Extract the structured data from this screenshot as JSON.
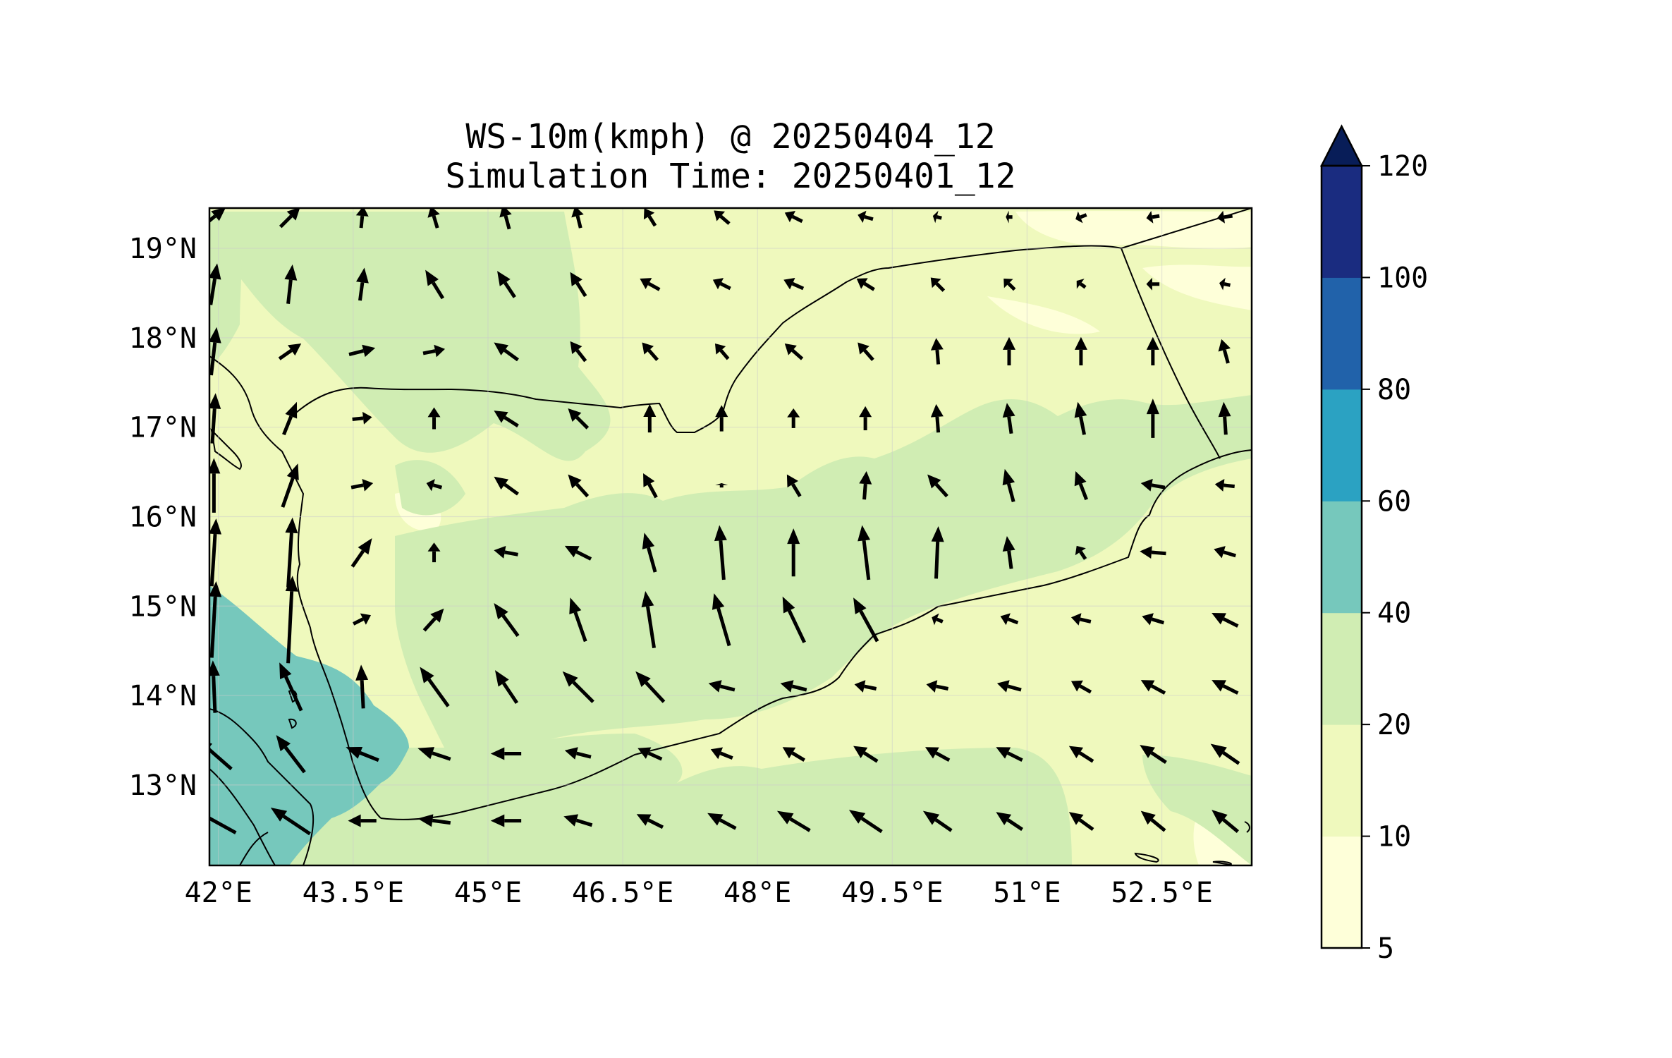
{
  "title": {
    "line1": "WS-10m(kmph) @ 20250404_12",
    "line2": "Simulation Time: 20250401_12"
  },
  "map": {
    "lon_range": [
      41.9,
      53.5
    ],
    "lat_range": [
      12.1,
      19.45
    ],
    "lon_ticks": [
      {
        "value": 42.0,
        "label": "42°E"
      },
      {
        "value": 43.5,
        "label": "43.5°E"
      },
      {
        "value": 45.0,
        "label": "45°E"
      },
      {
        "value": 46.5,
        "label": "46.5°E"
      },
      {
        "value": 48.0,
        "label": "48°E"
      },
      {
        "value": 49.5,
        "label": "49.5°E"
      },
      {
        "value": 51.0,
        "label": "51°E"
      },
      {
        "value": 52.5,
        "label": "52.5°E"
      }
    ],
    "lat_ticks": [
      {
        "value": 19,
        "label": "19°N"
      },
      {
        "value": 18,
        "label": "18°N"
      },
      {
        "value": 17,
        "label": "17°N"
      },
      {
        "value": 16,
        "label": "16°N"
      },
      {
        "value": 15,
        "label": "15°N"
      },
      {
        "value": 14,
        "label": "14°N"
      },
      {
        "value": 13,
        "label": "13°N"
      }
    ],
    "gridlines": true,
    "fill_colors": {
      "5-10": "#feffd9",
      "10-20": "#eff9bd",
      "20-40": "#d0edb3",
      "40-60": "#76c8bc",
      "60-80": "#2ba2c2",
      "80-100": "#2162aa",
      "100-120": "#1a2c80",
      "over": "#081d58"
    }
  },
  "colorbar": {
    "ticks": [
      "5",
      "10",
      "20",
      "40",
      "60",
      "80",
      "100",
      "120"
    ],
    "colors": [
      "#feffd9",
      "#eff9bd",
      "#d0edb3",
      "#76c8bc",
      "#2ba2c2",
      "#2162aa",
      "#1a2c80"
    ],
    "extend_color": "#081d58",
    "extend": "max"
  },
  "chart_data": {
    "type": "wind_vector_map",
    "variable": "WS-10m(kmph)",
    "units": "kmph",
    "vector_grid": {
      "lon": [
        41.95,
        42.8,
        43.6,
        44.4,
        45.2,
        46.0,
        46.8,
        47.6,
        48.4,
        49.2,
        50.0,
        50.8,
        51.6,
        52.4,
        53.2
      ],
      "lat": [
        19.35,
        18.6,
        17.85,
        17.1,
        16.35,
        15.6,
        14.85,
        14.1,
        13.35,
        12.6
      ],
      "u_kmph": [
        [
          22,
          18,
          2,
          -6,
          -6,
          -5,
          -10,
          -14,
          -16,
          -14,
          -8,
          -6,
          -10,
          -12,
          -14
        ],
        [
          6,
          4,
          4,
          -16,
          -16,
          -14,
          -18,
          -16,
          -18,
          -16,
          -12,
          -10,
          -8,
          -12,
          -10
        ],
        [
          5,
          20,
          24,
          20,
          -22,
          -14,
          -14,
          -12,
          -16,
          -14,
          -2,
          0,
          0,
          0,
          -6
        ],
        [
          3,
          12,
          18,
          0,
          -22,
          -18,
          0,
          0,
          0,
          0,
          -2,
          -4,
          -6,
          0,
          -2
        ],
        [
          0,
          14,
          20,
          -14,
          -22,
          -18,
          -12,
          0,
          -12,
          2,
          -18,
          -8,
          -10,
          -22,
          -18
        ],
        [
          4,
          4,
          18,
          0,
          -22,
          -24,
          -10,
          -4,
          0,
          -6,
          2,
          -4,
          -8,
          -24,
          -20
        ],
        [
          4,
          4,
          16,
          18,
          -22,
          -14,
          -8,
          -14,
          -20,
          -22,
          -10,
          -16,
          -18,
          -20,
          -24
        ],
        [
          -2,
          -20,
          -2,
          -26,
          -20,
          -28,
          -26,
          -24,
          -24,
          -20,
          -20,
          -22,
          -18,
          -22,
          -24
        ],
        [
          -32,
          -26,
          -30,
          -30,
          -28,
          -24,
          -22,
          -20,
          -20,
          -22,
          -22,
          -24,
          -22,
          -24,
          -26
        ],
        [
          -40,
          -36,
          -26,
          -30,
          -28,
          -26,
          -24,
          -26,
          -30,
          -30,
          -26,
          -24,
          -22,
          -22,
          -24
        ]
      ],
      "v_kmph": [
        [
          18,
          18,
          20,
          20,
          22,
          20,
          16,
          12,
          8,
          4,
          2,
          0,
          -4,
          -2,
          -2
        ],
        [
          38,
          36,
          30,
          26,
          24,
          22,
          10,
          8,
          8,
          10,
          12,
          10,
          6,
          0,
          2
        ],
        [
          44,
          14,
          6,
          4,
          16,
          18,
          16,
          14,
          14,
          16,
          24,
          26,
          26,
          26,
          22
        ],
        [
          46,
          30,
          2,
          20,
          14,
          18,
          26,
          24,
          18,
          22,
          26,
          28,
          30,
          36,
          30
        ],
        [
          50,
          40,
          4,
          4,
          16,
          20,
          22,
          4,
          20,
          26,
          20,
          30,
          26,
          4,
          2
        ],
        [
          62,
          64,
          26,
          18,
          4,
          12,
          36,
          50,
          44,
          50,
          48,
          30,
          12,
          2,
          6
        ],
        [
          70,
          80,
          8,
          20,
          30,
          40,
          52,
          48,
          42,
          40,
          4,
          6,
          4,
          6,
          12
        ],
        [
          48,
          44,
          40,
          36,
          30,
          28,
          28,
          6,
          6,
          4,
          4,
          6,
          10,
          12,
          12
        ],
        [
          28,
          34,
          12,
          10,
          0,
          6,
          10,
          8,
          12,
          14,
          12,
          12,
          14,
          16,
          18
        ],
        [
          22,
          24,
          0,
          4,
          0,
          8,
          12,
          14,
          18,
          20,
          18,
          16,
          16,
          18,
          20
        ]
      ]
    },
    "colorbar_levels": [
      5,
      10,
      20,
      40,
      60,
      80,
      100,
      120
    ],
    "colorbar_extend": "max"
  }
}
